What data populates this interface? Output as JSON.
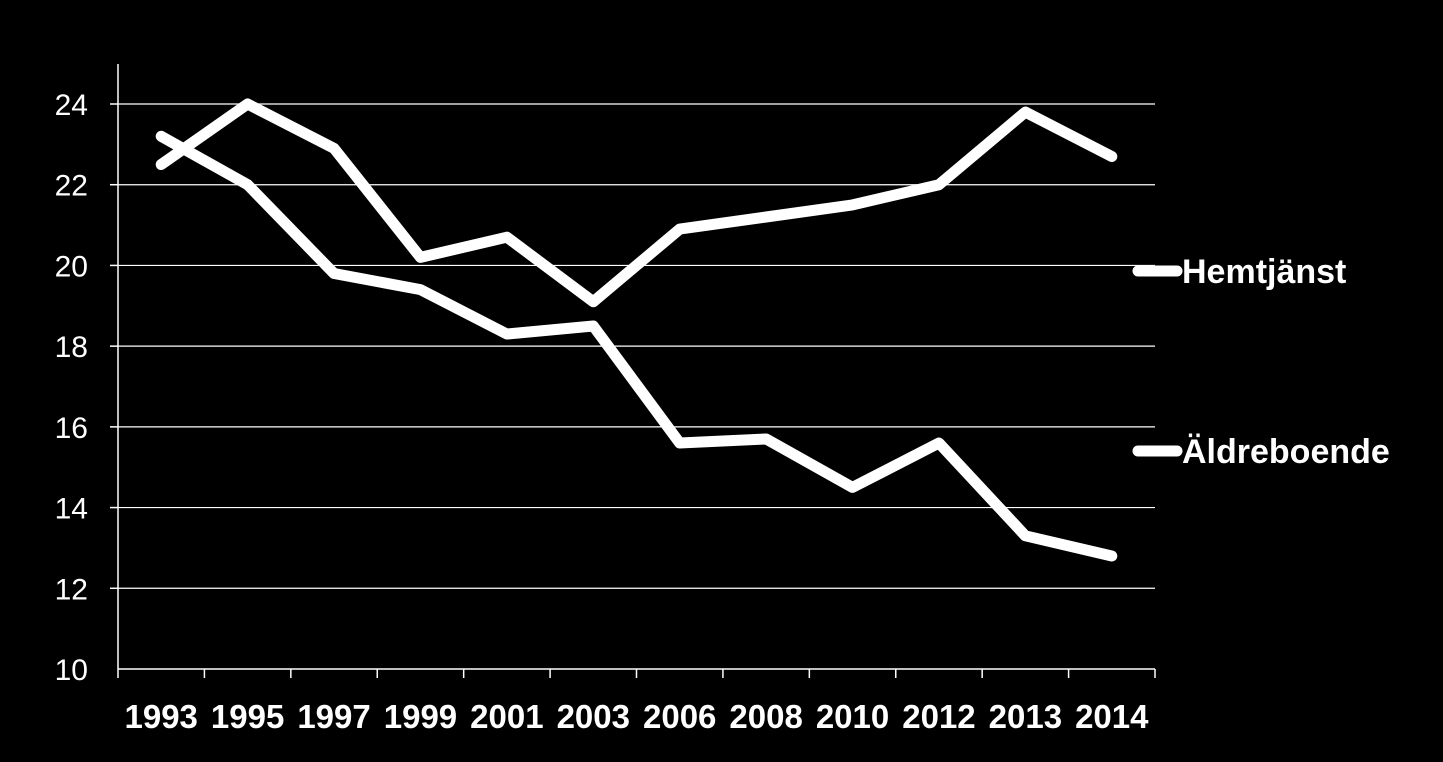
{
  "chart_data": {
    "type": "line",
    "categories": [
      "1993",
      "1995",
      "1997",
      "1999",
      "2001",
      "2003",
      "2006",
      "2008",
      "2010",
      "2012",
      "2013",
      "2014"
    ],
    "series": [
      {
        "name": "Hemtjänst",
        "values": [
          22.5,
          24.0,
          22.9,
          20.2,
          20.7,
          19.1,
          20.9,
          21.2,
          21.5,
          22.0,
          23.8,
          22.7
        ]
      },
      {
        "name": "Äldreboende",
        "values": [
          23.2,
          22.0,
          19.8,
          19.4,
          18.3,
          18.5,
          15.6,
          15.7,
          14.5,
          15.6,
          13.3,
          12.8
        ]
      }
    ],
    "yticks": [
      "10",
      "12",
      "14",
      "16",
      "18",
      "20",
      "22",
      "24"
    ],
    "ylim": [
      10,
      25
    ],
    "grid": true,
    "legend_position": "right",
    "colors": {
      "background": "#000000",
      "lines": "#ffffff",
      "grid": "#ffffff",
      "text": "#ffffff"
    }
  }
}
